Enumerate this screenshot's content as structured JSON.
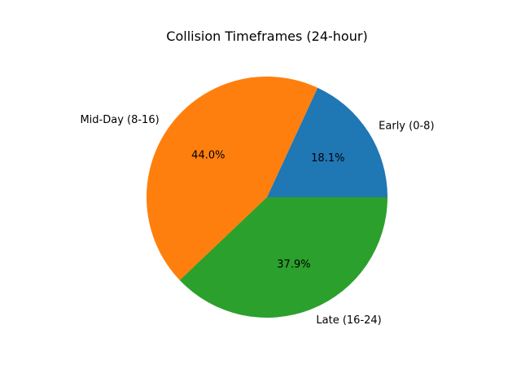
{
  "chart_data": {
    "type": "pie",
    "title": "Collision Timeframes (24-hour)",
    "categories": [
      "Early (0-8)",
      "Mid-Day (8-16)",
      "Late (16-24)"
    ],
    "values": [
      18.1,
      44.0,
      37.9
    ],
    "percent_labels": [
      "18.1%",
      "44.0%",
      "37.9%"
    ],
    "colors": [
      "#1f77b4",
      "#ff7f0e",
      "#2ca02c"
    ],
    "start_angle_deg": 0,
    "direction": "counterclockwise",
    "legend": "none"
  }
}
